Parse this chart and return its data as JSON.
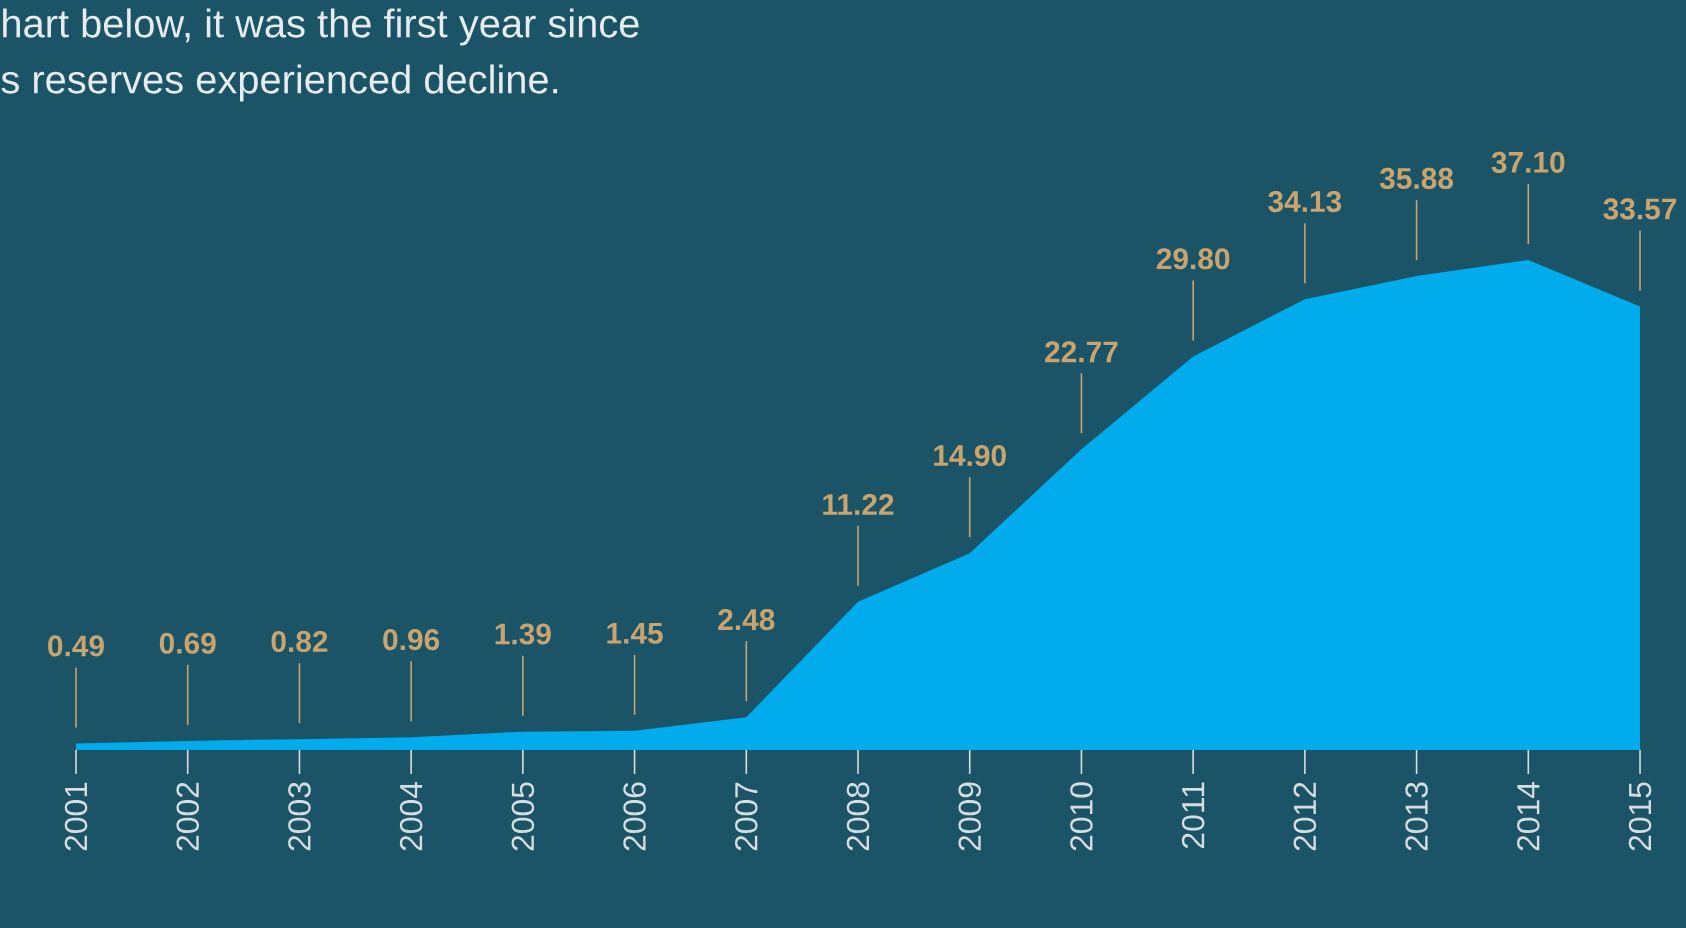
{
  "chart_data": {
    "type": "area",
    "annotations": [
      "hart below, it was the first year since",
      "s reserves experienced decline."
    ],
    "categories": [
      "2001",
      "2002",
      "2003",
      "2004",
      "2005",
      "2006",
      "2007",
      "2008",
      "2009",
      "2010",
      "2011",
      "2012",
      "2013",
      "2014",
      "2015"
    ],
    "values": [
      0.49,
      0.69,
      0.82,
      0.96,
      1.39,
      1.45,
      2.48,
      11.22,
      14.9,
      22.77,
      29.8,
      34.13,
      35.88,
      37.1,
      33.57
    ],
    "value_labels": [
      "0.49",
      "0.69",
      "0.82",
      "0.96",
      "1.39",
      "1.45",
      "2.48",
      "11.22",
      "14.90",
      "22.77",
      "29.80",
      "34.13",
      "35.88",
      "37.10",
      "33.57"
    ],
    "color": "#00acec"
  }
}
